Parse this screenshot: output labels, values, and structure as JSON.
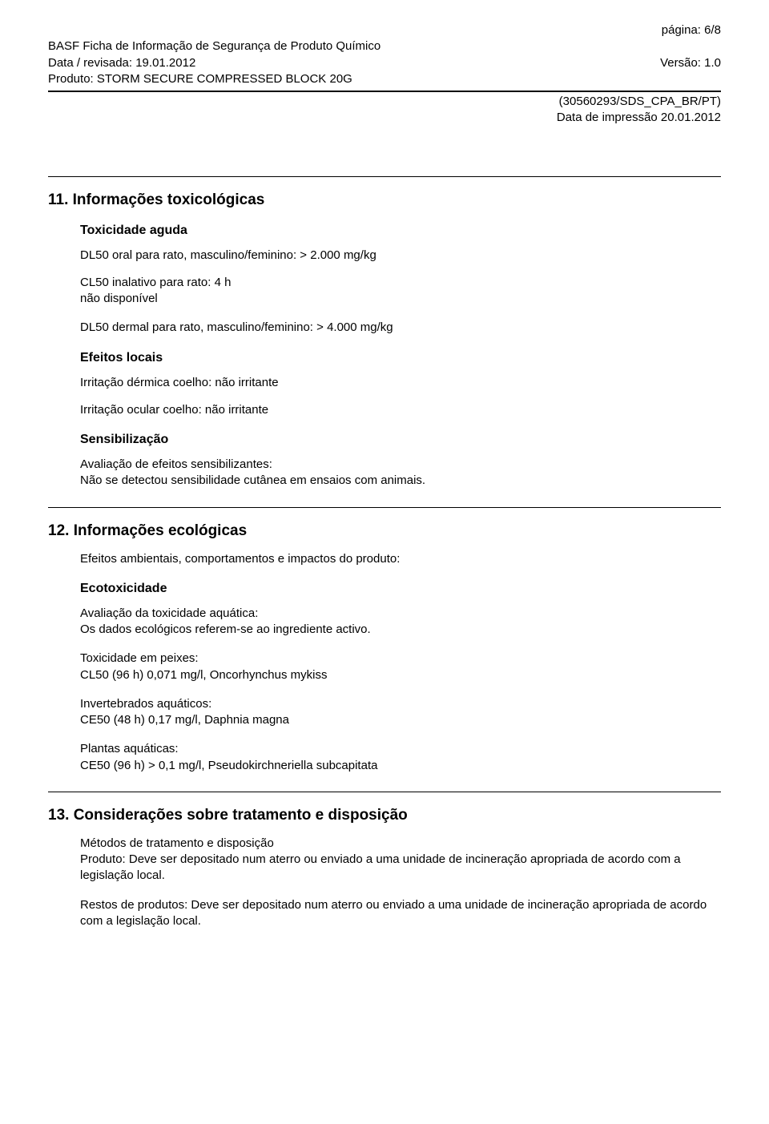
{
  "header": {
    "page_label": "página: 6/8",
    "company_doc_title": "BASF Ficha de Informação de Segurança de Produto Químico",
    "date_label": "Data / revisada: 19.01.2012",
    "version_label": "Versão: 1.0",
    "product_line": "Produto: STORM SECURE COMPRESSED BLOCK 20G",
    "doc_id": "(30560293/SDS_CPA_BR/PT)",
    "print_date": "Data de impressão 20.01.2012"
  },
  "section11": {
    "title": "11. Informações toxicológicas",
    "acute": {
      "heading": "Toxicidade aguda",
      "dl50_oral": "DL50 oral para rato, masculino/feminino: > 2.000 mg/kg",
      "cl50_inhale_label": "CL50 inalativo para rato: 4 h",
      "cl50_inhale_value": "não disponível",
      "dl50_dermal": "DL50 dermal para rato, masculino/feminino: > 4.000 mg/kg"
    },
    "local": {
      "heading": "Efeitos locais",
      "dermal": "Irritação dérmica coelho: não irritante",
      "ocular": "Irritação ocular coelho: não irritante"
    },
    "sens": {
      "heading": "Sensibilização",
      "eval_label": "Avaliação de efeitos sensibilizantes:",
      "eval_text": "Não se detectou sensibilidade cutânea em ensaios com animais."
    }
  },
  "section12": {
    "title": "12. Informações ecológicas",
    "env_line": "Efeitos ambientais, comportamentos e impactos do produto:",
    "ecotox": {
      "heading": "Ecotoxicidade",
      "aquatic_eval_label": "Avaliação da toxicidade aquática:",
      "aquatic_eval_text": "Os dados ecológicos referem-se ao ingrediente activo.",
      "fish_label": "Toxicidade em peixes:",
      "fish_value": "CL50 (96 h) 0,071 mg/l, Oncorhynchus mykiss",
      "invert_label": "Invertebrados aquáticos:",
      "invert_value": "CE50 (48 h) 0,17 mg/l, Daphnia magna",
      "plants_label": "Plantas aquáticas:",
      "plants_value": "CE50 (96 h) > 0,1 mg/l, Pseudokirchneriella subcapitata"
    }
  },
  "section13": {
    "title": "13. Considerações sobre tratamento e disposição",
    "methods_label": "Métodos de tratamento e disposição",
    "product_disposal": "Produto: Deve ser depositado num aterro ou enviado a uma unidade de incineração apropriada de acordo com a legislação local.",
    "residues_disposal": "Restos de produtos: Deve ser depositado num aterro ou enviado a uma unidade de incineração apropriada de acordo com a legislação local."
  },
  "style": {
    "font_family": "Arial",
    "body_font_size_pt": 11,
    "heading_font_size_pt": 14,
    "subheading_font_size_pt": 12,
    "text_color": "#000000",
    "background_color": "#ffffff",
    "rule_color": "#000000"
  }
}
